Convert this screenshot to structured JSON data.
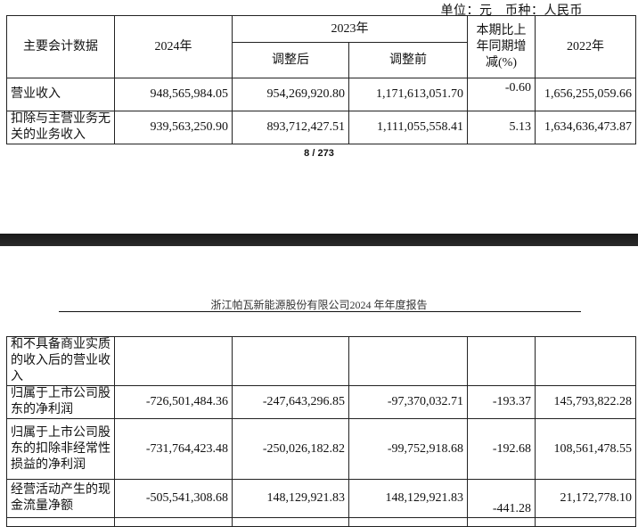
{
  "unit_line": "单位：元　币种：人民币",
  "page_indicator": "8 / 273",
  "running_header": "浙江帕瓦新能源股份有限公司2024 年年度报告",
  "table": {
    "headers": {
      "item": "主要会计数据",
      "y2024": "2024年",
      "y2023": "2023年",
      "adjusted": "调整后",
      "before_adjust": "调整前",
      "change": "本期比上年同期增减(%)",
      "y2022": "2022年"
    },
    "rows_page1": [
      {
        "item": "营业收入",
        "y2024": "948,565,984.05",
        "adjusted": "954,269,920.80",
        "before": "1,171,613,051.70",
        "change": "-0.60",
        "y2022": "1,656,255,059.66"
      },
      {
        "item": "扣除与主营业务无关的业务收入",
        "y2024": "939,563,250.90",
        "adjusted": "893,712,427.51",
        "before": "1,111,055,558.41",
        "change": "5.13",
        "y2022": "1,634,636,473.87"
      }
    ],
    "rows_page2": [
      {
        "item": "和不具备商业实质的收入后的营业收入",
        "y2024": "",
        "adjusted": "",
        "before": "",
        "change": "",
        "y2022": ""
      },
      {
        "item": "归属于上市公司股东的净利润",
        "y2024": "-726,501,484.36",
        "adjusted": "-247,643,296.85",
        "before": "-97,370,032.71",
        "change": "-193.37",
        "y2022": "145,793,822.28"
      },
      {
        "item": "归属于上市公司股东的扣除非经常性损益的净利润",
        "y2024": "-731,764,423.48",
        "adjusted": "-250,026,182.82",
        "before": "-99,752,918.68",
        "change": "-192.68",
        "y2022": "108,561,478.55"
      },
      {
        "item": "经营活动产生的现金流量净额",
        "y2024": "-505,541,308.68",
        "adjusted": "148,129,921.83",
        "before": "148,129,921.83",
        "change": "-441.28",
        "y2022": "21,172,778.10"
      }
    ]
  }
}
